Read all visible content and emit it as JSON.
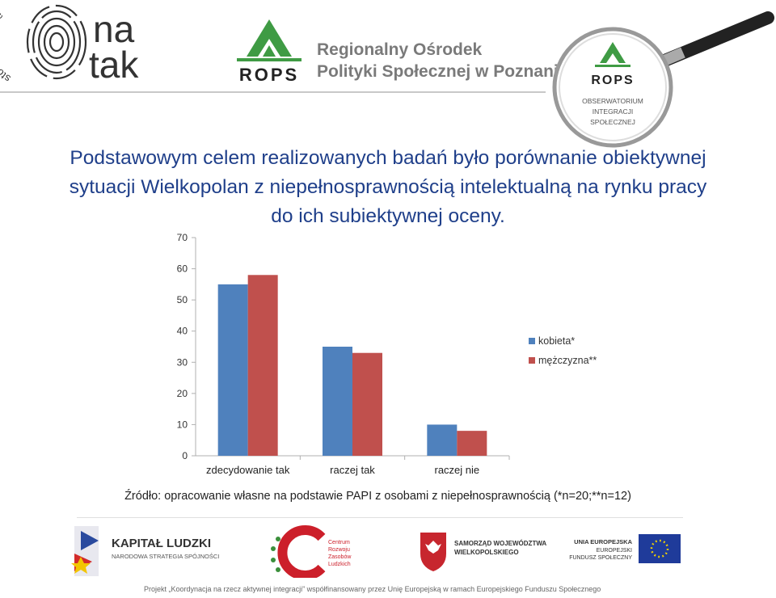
{
  "header": {
    "natak_logo": {
      "line1": "na",
      "line2": "tak",
      "arc_text": "stowarzyszenie"
    },
    "rops_logo": {
      "text": "ROPS"
    },
    "rops_org_line1": "Regionalny Ośrodek",
    "rops_org_line2": "Polityki Społecznej w Poznaniu",
    "magnifier": {
      "rops": "ROPS",
      "line1": "OBSERWATORIUM",
      "line2": "INTEGRACJI",
      "line3": "SPOŁECZNEJ"
    }
  },
  "title": {
    "line1": "Podstawowym celem realizowanych badań było porównanie obiektywnej",
    "line2": "sytuacji Wielkopolan z niepełnosprawnością intelektualną na rynku pracy",
    "line3": "do ich subiektywnej oceny."
  },
  "chart_data": {
    "type": "bar",
    "categories": [
      "zdecydowanie tak",
      "raczej tak",
      "raczej nie"
    ],
    "series": [
      {
        "name": "kobieta*",
        "values": [
          55,
          35,
          10
        ],
        "color": "#4f81bd"
      },
      {
        "name": "mężczyzna**",
        "values": [
          58,
          33,
          8
        ],
        "color": "#c0504d"
      }
    ],
    "ylim": [
      0,
      70
    ],
    "yticks": [
      0,
      10,
      20,
      30,
      40,
      50,
      60,
      70
    ],
    "legend_position": "right",
    "grid": false
  },
  "source_note": "Źródło: opracowanie własne na podstawie PAPI z osobami z niepełnosprawnością (*n=20;**n=12)",
  "footer": {
    "kapital_line1": "KAPITAŁ LUDZKI",
    "kapital_line2": "NARODOWA STRATEGIA SPÓJNOŚCI",
    "centrum_line1": "Centrum",
    "centrum_line2": "Rozwoju",
    "centrum_line3": "Zasobów",
    "centrum_line4": "Ludzkich",
    "samorzad_line1": "SAMORZĄD WOJEWÓDZTWA",
    "samorzad_line2": "WIELKOPOLSKIEGO",
    "ue_line1": "UNIA EUROPEJSKA",
    "ue_line2": "EUROPEJSKI",
    "ue_line3": "FUNDUSZ SPOŁECZNY",
    "project_note": "Projekt „Koordynacja na rzecz aktywnej integracji” współfinansowany przez Unię Europejską w ramach Europejskiego Funduszu Społecznego"
  }
}
